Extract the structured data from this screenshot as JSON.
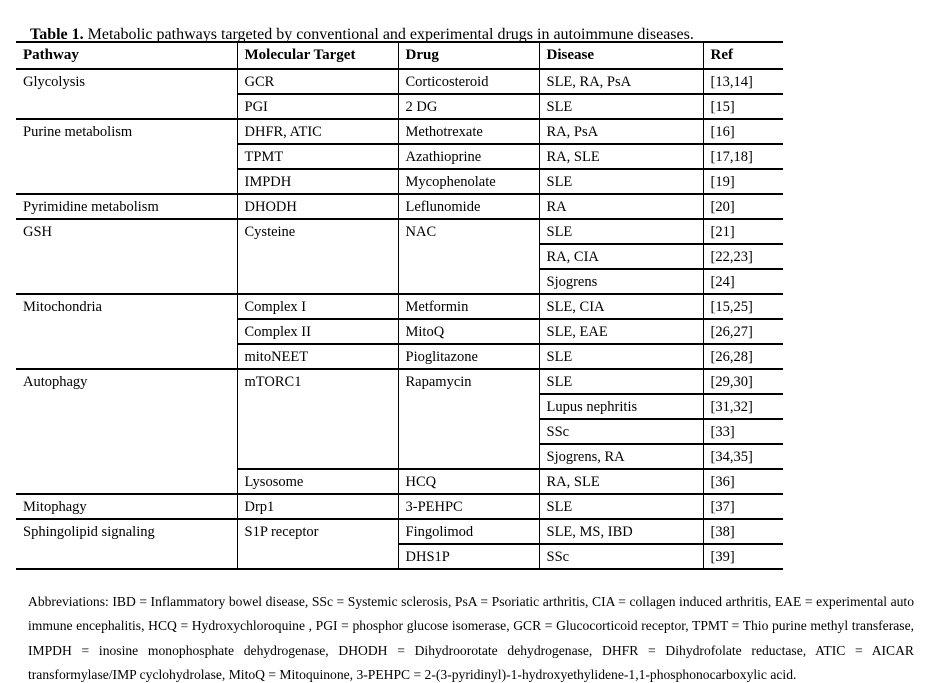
{
  "caption": {
    "label": "Table 1.",
    "text": "Metabolic pathways targeted by conventional and experimental drugs in autoimmune diseases."
  },
  "col_keys": [
    "pathway",
    "target",
    "drug",
    "disease",
    "ref"
  ],
  "columns": [
    "Pathway",
    "Molecular Target",
    "Drug",
    "Disease",
    "Ref"
  ],
  "rows": [
    [
      {
        "col": "pathway",
        "text": "Glycolysis",
        "rowspan": 2
      },
      {
        "col": "target",
        "text": "GCR"
      },
      {
        "col": "drug",
        "text": "Corticosteroid"
      },
      {
        "col": "disease",
        "text": "SLE, RA, PsA"
      },
      {
        "col": "ref",
        "text": "[13,14]"
      }
    ],
    [
      {
        "col": "target",
        "text": "PGI"
      },
      {
        "col": "drug",
        "text": "2 DG"
      },
      {
        "col": "disease",
        "text": "SLE"
      },
      {
        "col": "ref",
        "text": "[15]"
      }
    ],
    [
      {
        "col": "pathway",
        "text": "Purine metabolism",
        "rowspan": 3
      },
      {
        "col": "target",
        "text": "DHFR, ATIC"
      },
      {
        "col": "drug",
        "text": "Methotrexate"
      },
      {
        "col": "disease",
        "text": "RA, PsA"
      },
      {
        "col": "ref",
        "text": "[16]"
      }
    ],
    [
      {
        "col": "target",
        "text": "TPMT"
      },
      {
        "col": "drug",
        "text": "Azathioprine"
      },
      {
        "col": "disease",
        "text": "RA, SLE"
      },
      {
        "col": "ref",
        "text": "[17,18]"
      }
    ],
    [
      {
        "col": "target",
        "text": "IMPDH"
      },
      {
        "col": "drug",
        "text": "Mycophenolate"
      },
      {
        "col": "disease",
        "text": "SLE"
      },
      {
        "col": "ref",
        "text": "[19]"
      }
    ],
    [
      {
        "col": "pathway",
        "text": "Pyrimidine metabolism"
      },
      {
        "col": "target",
        "text": "DHODH"
      },
      {
        "col": "drug",
        "text": "Leflunomide"
      },
      {
        "col": "disease",
        "text": "RA"
      },
      {
        "col": "ref",
        "text": "[20]"
      }
    ],
    [
      {
        "col": "pathway",
        "text": "GSH",
        "rowspan": 3
      },
      {
        "col": "target",
        "text": "Cysteine",
        "rowspan": 3
      },
      {
        "col": "drug",
        "text": "NAC",
        "rowspan": 3
      },
      {
        "col": "disease",
        "text": "SLE"
      },
      {
        "col": "ref",
        "text": "[21]"
      }
    ],
    [
      {
        "col": "disease",
        "text": "RA, CIA"
      },
      {
        "col": "ref",
        "text": "[22,23]"
      }
    ],
    [
      {
        "col": "disease",
        "text": "Sjogrens"
      },
      {
        "col": "ref",
        "text": "[24]"
      }
    ],
    [
      {
        "col": "pathway",
        "text": "Mitochondria",
        "rowspan": 3
      },
      {
        "col": "target",
        "text": "Complex I"
      },
      {
        "col": "drug",
        "text": "Metformin"
      },
      {
        "col": "disease",
        "text": "SLE, CIA"
      },
      {
        "col": "ref",
        "text": "[15,25]"
      }
    ],
    [
      {
        "col": "target",
        "text": "Complex II"
      },
      {
        "col": "drug",
        "text": "MitoQ"
      },
      {
        "col": "disease",
        "text": "SLE, EAE"
      },
      {
        "col": "ref",
        "text": "[26,27]"
      }
    ],
    [
      {
        "col": "target",
        "text": "mitoNEET"
      },
      {
        "col": "drug",
        "text": "Pioglitazone"
      },
      {
        "col": "disease",
        "text": "SLE"
      },
      {
        "col": "ref",
        "text": "[26,28]"
      }
    ],
    [
      {
        "col": "pathway",
        "text": "Autophagy",
        "rowspan": 5
      },
      {
        "col": "target",
        "text": "mTORC1",
        "rowspan": 4
      },
      {
        "col": "drug",
        "text": "Rapamycin",
        "rowspan": 4
      },
      {
        "col": "disease",
        "text": "SLE"
      },
      {
        "col": "ref",
        "text": "[29,30]"
      }
    ],
    [
      {
        "col": "disease",
        "text": "Lupus nephritis"
      },
      {
        "col": "ref",
        "text": "[31,32]"
      }
    ],
    [
      {
        "col": "disease",
        "text": "SSc"
      },
      {
        "col": "ref",
        "text": "[33]"
      }
    ],
    [
      {
        "col": "disease",
        "text": "Sjogrens, RA"
      },
      {
        "col": "ref",
        "text": "[34,35]"
      }
    ],
    [
      {
        "col": "target",
        "text": "Lysosome"
      },
      {
        "col": "drug",
        "text": "HCQ"
      },
      {
        "col": "disease",
        "text": "RA, SLE"
      },
      {
        "col": "ref",
        "text": "[36]"
      }
    ],
    [
      {
        "col": "pathway",
        "text": "Mitophagy"
      },
      {
        "col": "target",
        "text": "Drp1"
      },
      {
        "col": "drug",
        "text": "3-PEHPC"
      },
      {
        "col": "disease",
        "text": "SLE"
      },
      {
        "col": "ref",
        "text": "[37]"
      }
    ],
    [
      {
        "col": "pathway",
        "text": "Sphingolipid signaling",
        "rowspan": 2
      },
      {
        "col": "target",
        "text": "S1P receptor",
        "rowspan": 2
      },
      {
        "col": "drug",
        "text": "Fingolimod"
      },
      {
        "col": "disease",
        "text": "SLE, MS, IBD"
      },
      {
        "col": "ref",
        "text": "[38]"
      }
    ],
    [
      {
        "col": "drug",
        "text": "DHS1P"
      },
      {
        "col": "disease",
        "text": "SSc"
      },
      {
        "col": "ref",
        "text": "[39]"
      }
    ]
  ],
  "footnote": "Abbreviations: IBD = Inflammatory bowel disease, SSc = Systemic sclerosis, PsA = Psoriatic arthritis, CIA = collagen induced arthritis, EAE = experimental auto immune encephalitis, HCQ = Hydroxychloroquine , PGI = phosphor glucose isomerase, GCR = Glucocorticoid receptor, TPMT = Thio purine methyl transferase, IMPDH = inosine monophosphate dehydrogenase, DHODH = Dihydroorotate dehydrogenase, DHFR = Dihydrofolate reductase, ATIC = AICAR transformylase/IMP cyclohydrolase, MitoQ = Mitoquinone, 3-PEHPC = 2-(3-pyridinyl)-1-hydroxyethylidene-1,1-phosphonocarboxylic acid."
}
